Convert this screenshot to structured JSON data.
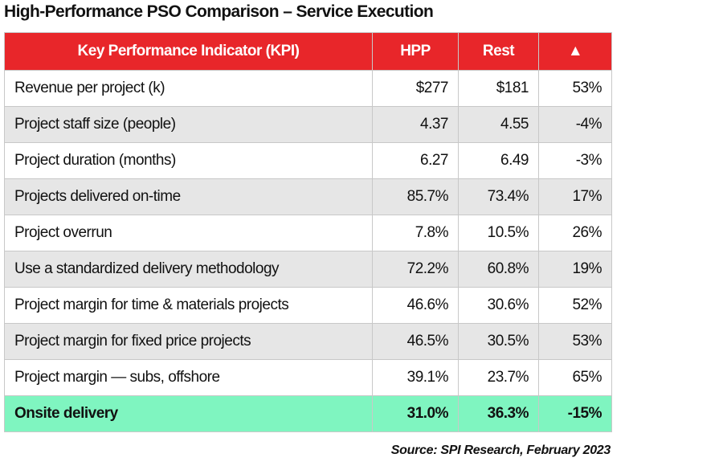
{
  "title": "High-Performance PSO Comparison – Service Execution",
  "table": {
    "header": [
      "Key Performance Indicator (KPI)",
      "HPP",
      "Rest",
      "▲"
    ],
    "rows": [
      [
        "Revenue per project (k)",
        "$277",
        "$181",
        "53%"
      ],
      [
        "Project staff size (people)",
        "4.37",
        "4.55",
        "-4%"
      ],
      [
        "Project duration (months)",
        "6.27",
        "6.49",
        "-3%"
      ],
      [
        "Projects delivered on-time",
        "85.7%",
        "73.4%",
        "17%"
      ],
      [
        "Project overrun",
        "7.8%",
        "10.5%",
        "26%"
      ],
      [
        "Use a standardized delivery methodology",
        "72.2%",
        "60.8%",
        "19%"
      ],
      [
        "Project margin for time & materials projects",
        "46.6%",
        "30.6%",
        "52%"
      ],
      [
        "Project margin for fixed price projects",
        "46.5%",
        "30.5%",
        "53%"
      ],
      [
        "Project margin — subs, offshore",
        "39.1%",
        "23.7%",
        "65%"
      ],
      [
        "Onsite delivery",
        "31.0%",
        "36.3%",
        "-15%"
      ]
    ]
  },
  "source": "Source: SPI Research, February 2023"
}
